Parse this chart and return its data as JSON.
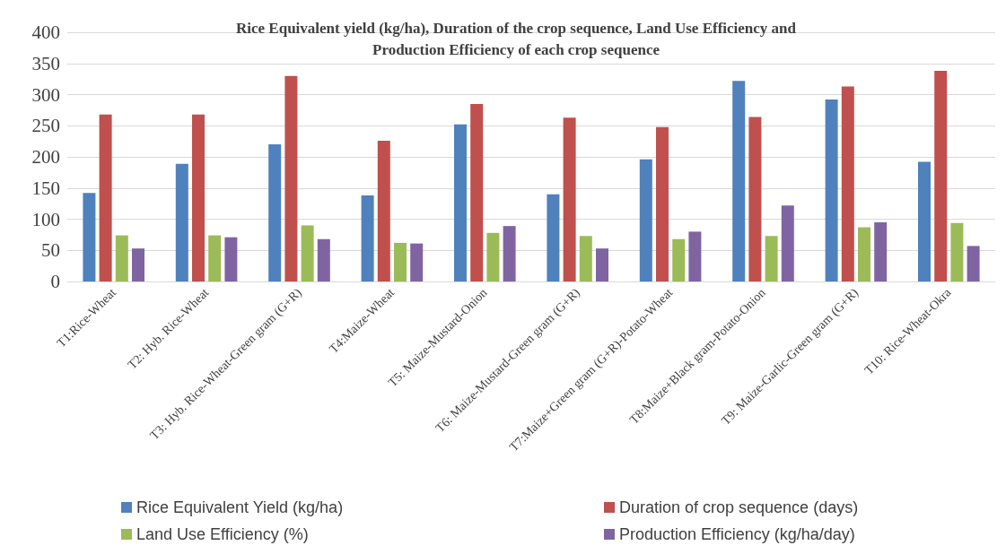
{
  "chart_data": {
    "type": "bar",
    "title": "Rice Equivalent yield (kg/ha), Duration of the crop sequence, Land Use Efficiency and\nProduction Efficiency of each crop sequence",
    "categories": [
      "T1:Rice-Wheat",
      "T2: Hyb. Rice-Wheat",
      "T3: Hyb. Rice-Wheat-Green gram (G+R)",
      "T4:Maize-Wheat",
      "T5: Maize-Mustard-Onion",
      "T6: Maize-Mustard-Green gram (G+R)",
      "T7:Maize+Green gram (G+R)-Potato-Wheat",
      "T8:Maize+Black gram-Potato-Onion",
      "T9: Maize-Garlic-Green gram (G+R)",
      "T10: Rice-Wheat-Okra"
    ],
    "series": [
      {
        "name": "Rice Equivalent Yield (kg/ha)",
        "color": "#4f81bd",
        "values": [
          142,
          189,
          220,
          138,
          252,
          140,
          196,
          322,
          292,
          192
        ]
      },
      {
        "name": "Duration of crop sequence (days)",
        "color": "#c0504d",
        "values": [
          268,
          268,
          330,
          226,
          285,
          263,
          248,
          264,
          313,
          338
        ]
      },
      {
        "name": "Land Use Efficiency (%)",
        "color": "#9bbb59",
        "values": [
          74,
          74,
          90,
          62,
          78,
          73,
          68,
          73,
          87,
          94
        ]
      },
      {
        "name": "Production Efficiency (kg/ha/day)",
        "color": "#8064a2",
        "values": [
          53,
          71,
          68,
          61,
          89,
          53,
          80,
          122,
          95,
          57
        ]
      }
    ],
    "ylim": [
      0,
      400
    ],
    "yticks": [
      0,
      50,
      100,
      150,
      200,
      250,
      300,
      350,
      400
    ],
    "grid": "y",
    "legend": "bottom"
  }
}
